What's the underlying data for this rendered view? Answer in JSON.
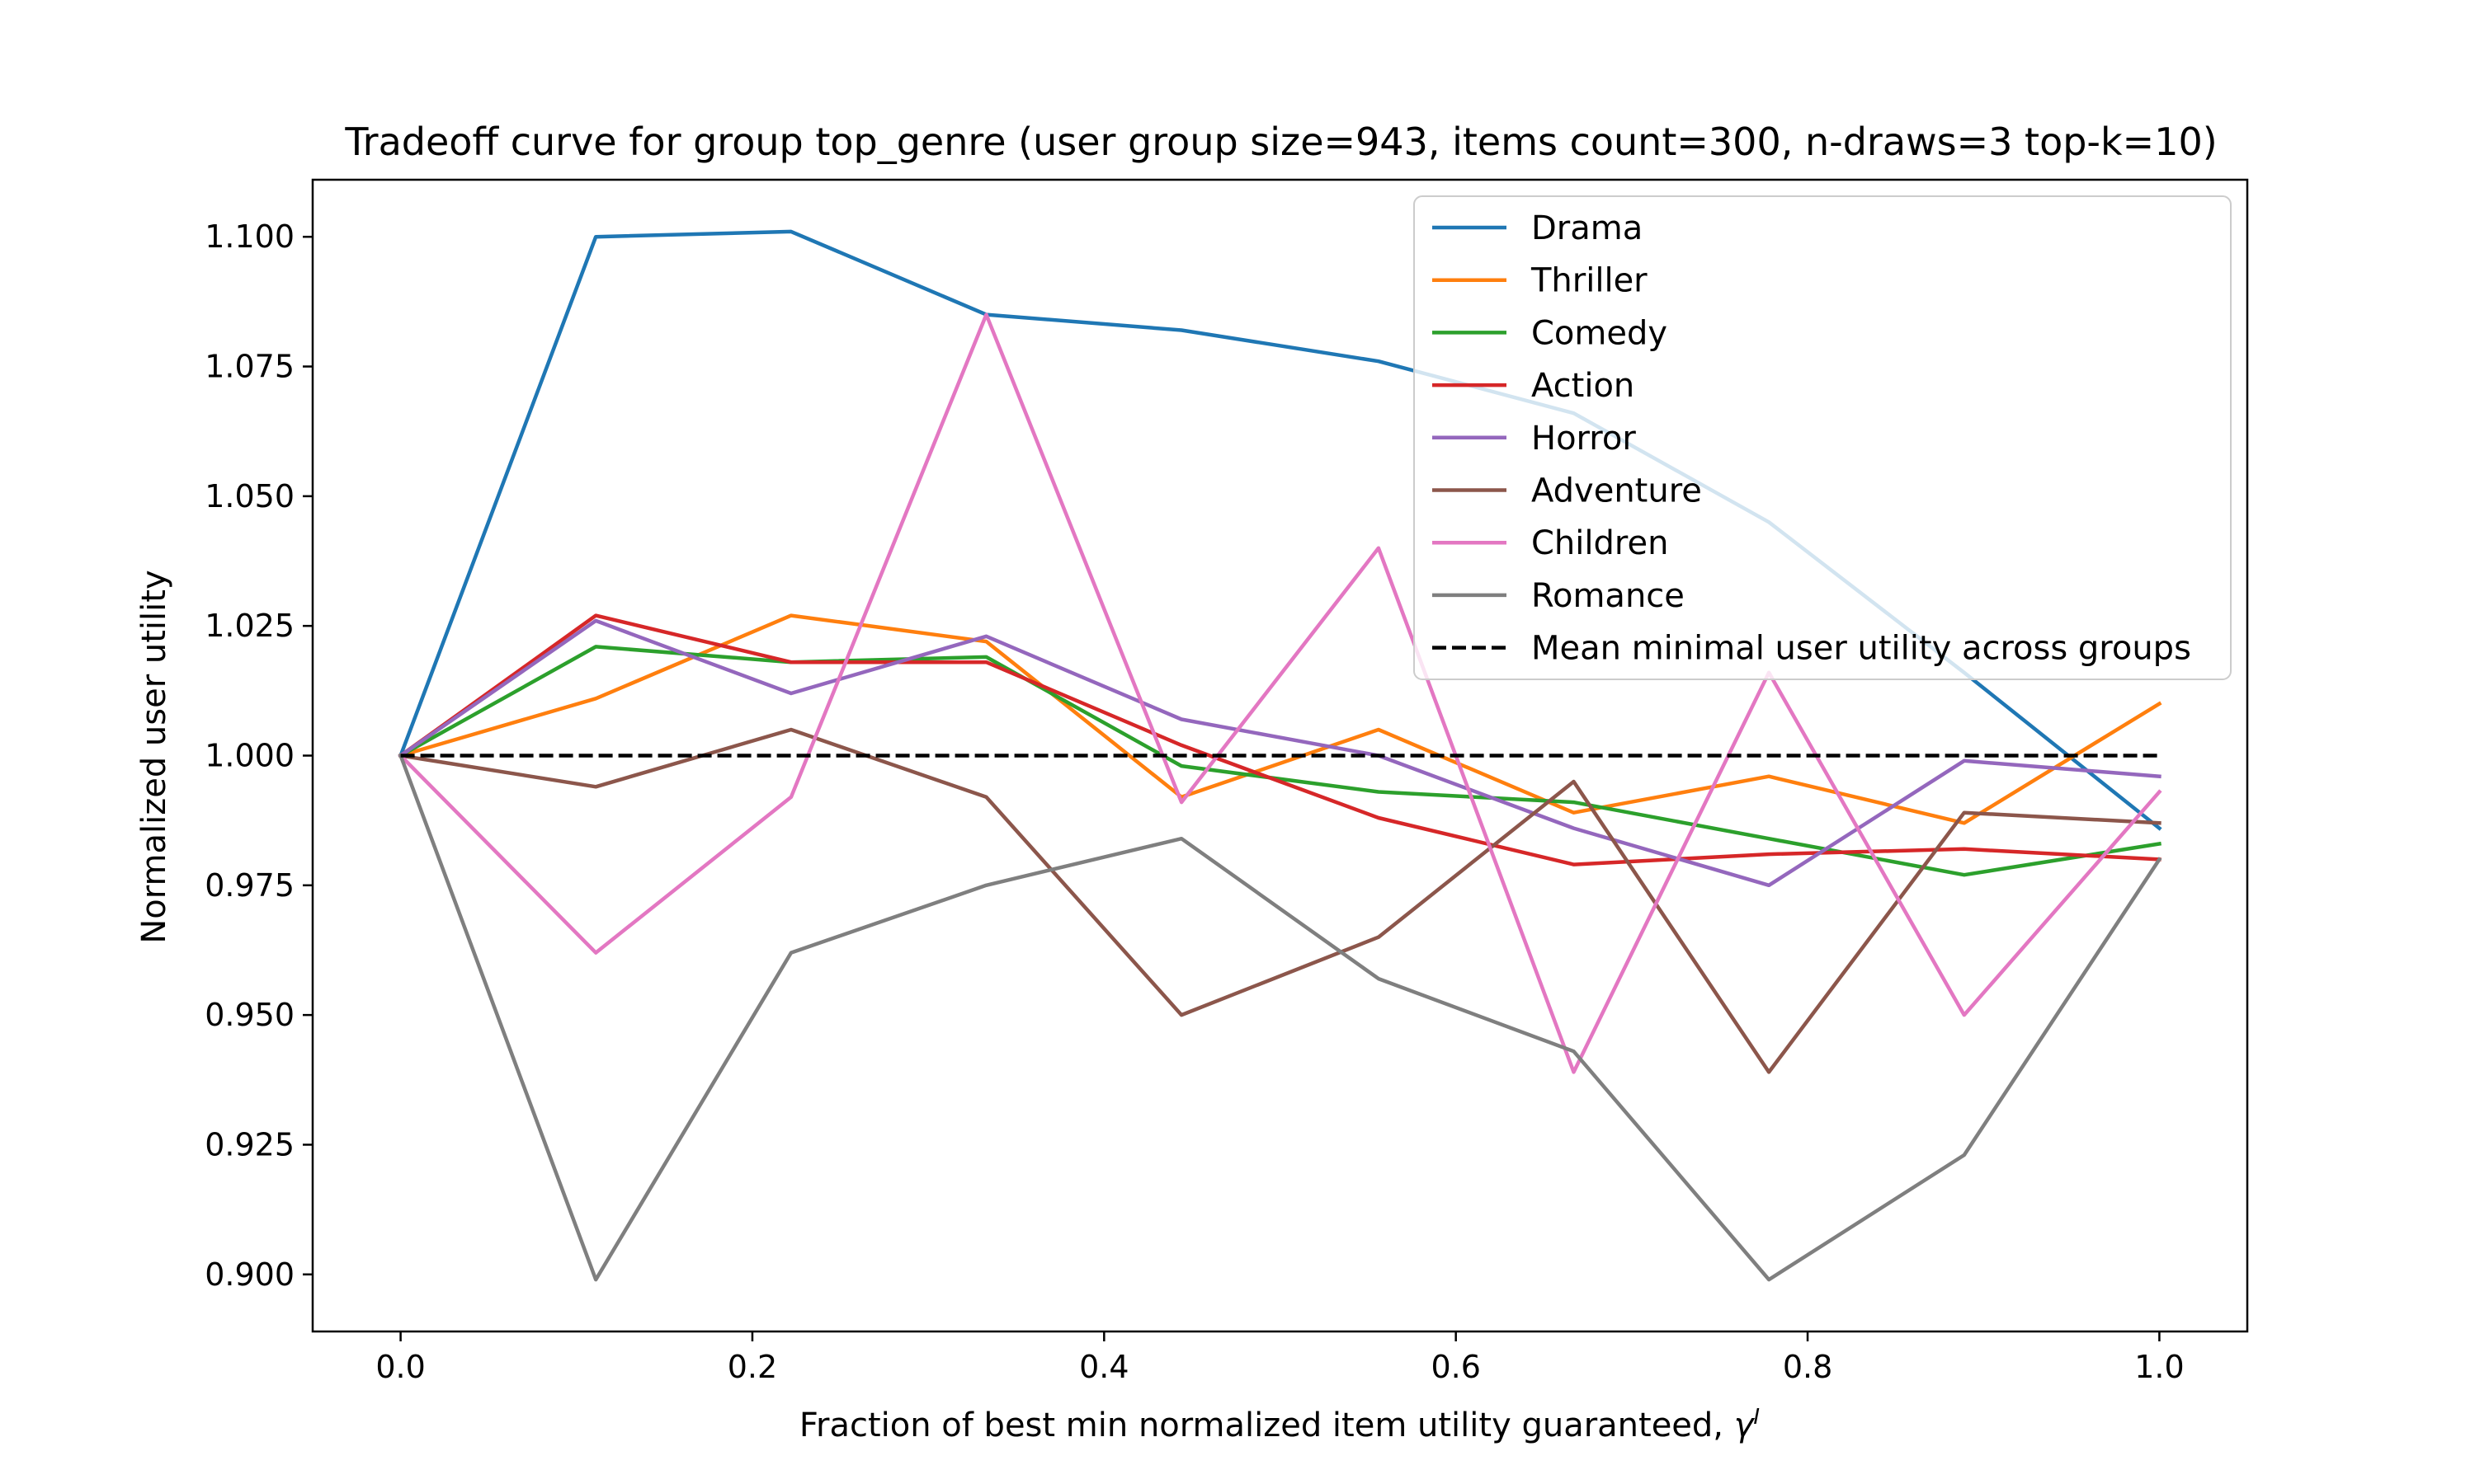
{
  "chart_data": {
    "type": "line",
    "title": "Tradeoff curve for group top_genre (user group size=943, items count=300, n-draws=3 top-k=10)",
    "xlabel_main": "Fraction of best min normalized item utility guaranteed, ",
    "xlabel_symbol": "γ",
    "xlabel_sup": "I",
    "ylabel": "Normalized user utility",
    "xlim": [
      -0.05,
      1.05
    ],
    "ylim": [
      0.889,
      1.111
    ],
    "x_ticks": [
      0.0,
      0.2,
      0.4,
      0.6,
      0.8,
      1.0
    ],
    "x_tick_labels": [
      "0.0",
      "0.2",
      "0.4",
      "0.6",
      "0.8",
      "1.0"
    ],
    "y_ticks": [
      0.9,
      0.925,
      0.95,
      0.975,
      1.0,
      1.025,
      1.05,
      1.075,
      1.1
    ],
    "y_tick_labels": [
      "0.900",
      "0.925",
      "0.950",
      "0.975",
      "1.000",
      "1.025",
      "1.050",
      "1.075",
      "1.100"
    ],
    "grid": false,
    "legend_position": "top-right",
    "x": [
      0.0,
      0.111,
      0.222,
      0.333,
      0.444,
      0.556,
      0.667,
      0.778,
      0.889,
      1.0
    ],
    "series": [
      {
        "name": "Drama",
        "color": "#1f77b4",
        "values": [
          1.0,
          1.1,
          1.101,
          1.085,
          1.082,
          1.076,
          1.066,
          1.045,
          1.016,
          0.986
        ]
      },
      {
        "name": "Thriller",
        "color": "#ff7f0e",
        "values": [
          1.0,
          1.011,
          1.027,
          1.022,
          0.992,
          1.005,
          0.989,
          0.996,
          0.987,
          1.01
        ]
      },
      {
        "name": "Comedy",
        "color": "#2ca02c",
        "values": [
          1.0,
          1.021,
          1.018,
          1.019,
          0.998,
          0.993,
          0.991,
          0.984,
          0.977,
          0.983
        ]
      },
      {
        "name": "Action",
        "color": "#d62728",
        "values": [
          1.0,
          1.027,
          1.018,
          1.018,
          1.002,
          0.988,
          0.979,
          0.981,
          0.982,
          0.98
        ]
      },
      {
        "name": "Horror",
        "color": "#9467bd",
        "values": [
          1.0,
          1.026,
          1.012,
          1.023,
          1.007,
          1.0,
          0.986,
          0.975,
          0.999,
          0.996
        ]
      },
      {
        "name": "Adventure",
        "color": "#8c564b",
        "values": [
          1.0,
          0.994,
          1.005,
          0.992,
          0.95,
          0.965,
          0.995,
          0.939,
          0.989,
          0.987
        ]
      },
      {
        "name": "Children",
        "color": "#e377c2",
        "values": [
          1.0,
          0.962,
          0.992,
          1.085,
          0.991,
          1.04,
          0.939,
          1.016,
          0.95,
          0.993
        ]
      },
      {
        "name": "Romance",
        "color": "#7f7f7f",
        "values": [
          1.0,
          0.899,
          0.962,
          0.975,
          0.984,
          0.957,
          0.943,
          0.899,
          0.923,
          0.98
        ]
      }
    ],
    "reference_line": {
      "name": "Mean minimal user utility across groups",
      "value": 1.0,
      "color": "#000000",
      "style": "dashed"
    }
  }
}
